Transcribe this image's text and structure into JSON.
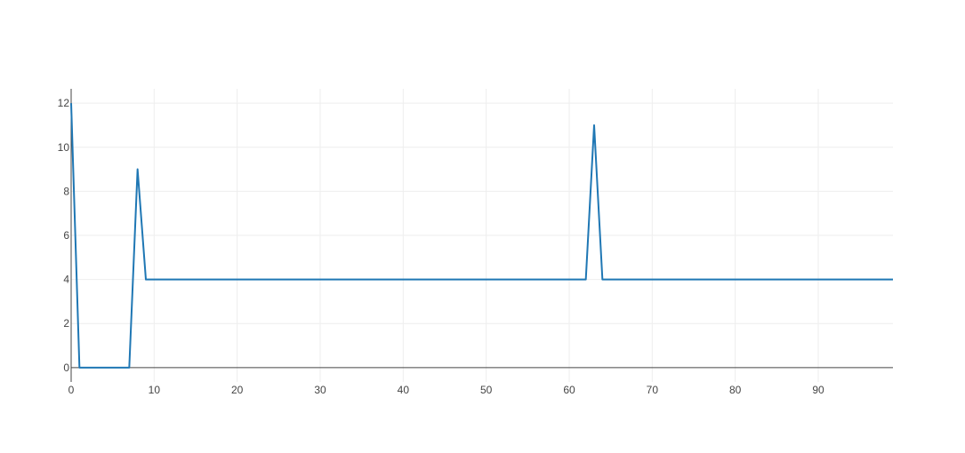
{
  "chart_data": {
    "type": "line",
    "title": "",
    "xlabel": "",
    "ylabel": "",
    "xlim": [
      0,
      99
    ],
    "ylim": [
      -0.65,
      12.65
    ],
    "grid": true,
    "legend": "none",
    "x_ticks": [
      0,
      10,
      20,
      30,
      40,
      50,
      60,
      70,
      80,
      90
    ],
    "y_ticks": [
      0,
      2,
      4,
      6,
      8,
      10,
      12
    ],
    "x_tick_labels": [
      "0",
      "10",
      "20",
      "30",
      "40",
      "50",
      "60",
      "70",
      "80",
      "90"
    ],
    "y_tick_labels": [
      "0",
      "2",
      "4",
      "6",
      "8",
      "10",
      "12"
    ],
    "series": [
      {
        "color": "#1f77b4",
        "points": [
          [
            0,
            12
          ],
          [
            1,
            0
          ],
          [
            2,
            0
          ],
          [
            3,
            0
          ],
          [
            4,
            0
          ],
          [
            5,
            0
          ],
          [
            6,
            0
          ],
          [
            7,
            0
          ],
          [
            8,
            9
          ],
          [
            9,
            4
          ],
          [
            62,
            4
          ],
          [
            63,
            11
          ],
          [
            64,
            4
          ],
          [
            99,
            4
          ]
        ]
      }
    ]
  }
}
